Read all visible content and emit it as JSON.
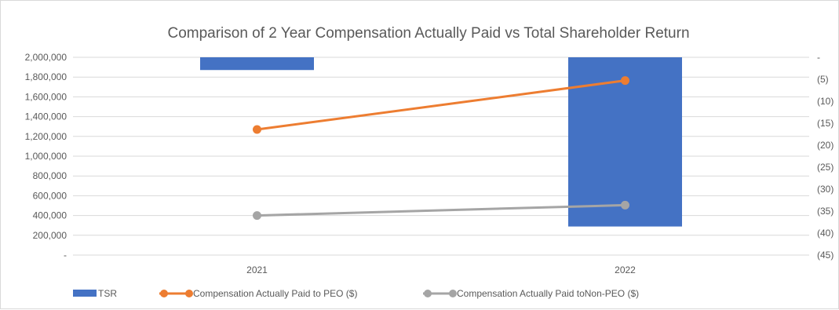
{
  "chart_data": {
    "type": "bar+line",
    "title": "Comparison of 2 Year Compensation Actually Paid vs Total Shareholder Return",
    "categories": [
      "2021",
      "2022"
    ],
    "y_left": {
      "ylim": [
        0,
        2000000
      ],
      "tick_values": [
        0,
        200000,
        400000,
        600000,
        800000,
        1000000,
        1200000,
        1400000,
        1600000,
        1800000,
        2000000
      ],
      "tick_labels": [
        "-",
        "200,000",
        "400,000",
        "600,000",
        "800,000",
        "1,000,000",
        "1,200,000",
        "1,400,000",
        "1,600,000",
        "1,800,000",
        "2,000,000"
      ]
    },
    "y_right": {
      "ylim": [
        -45,
        0
      ],
      "tick_values": [
        0,
        -5,
        -10,
        -15,
        -20,
        -25,
        -30,
        -35,
        -40,
        -45
      ],
      "tick_labels": [
        "-",
        "(5)",
        "(10)",
        "(15)",
        "(20)",
        "(25)",
        "(30)",
        "(35)",
        "(40)",
        "(45)"
      ]
    },
    "series": [
      {
        "name": "TSR",
        "kind": "bar",
        "axis": "right",
        "color": "#4472c4",
        "values": [
          -2.9,
          -38.5
        ]
      },
      {
        "name": "Compensation Actually Paid to PEO ($)",
        "kind": "line",
        "axis": "left",
        "color": "#ed7d31",
        "values": [
          1270000,
          1765000
        ]
      },
      {
        "name": "Compensation Actually Paid toNon-PEO ($)",
        "kind": "line",
        "axis": "left",
        "color": "#a5a5a5",
        "values": [
          400000,
          505000
        ]
      }
    ],
    "grid": true,
    "legend_position": "bottom-left"
  }
}
